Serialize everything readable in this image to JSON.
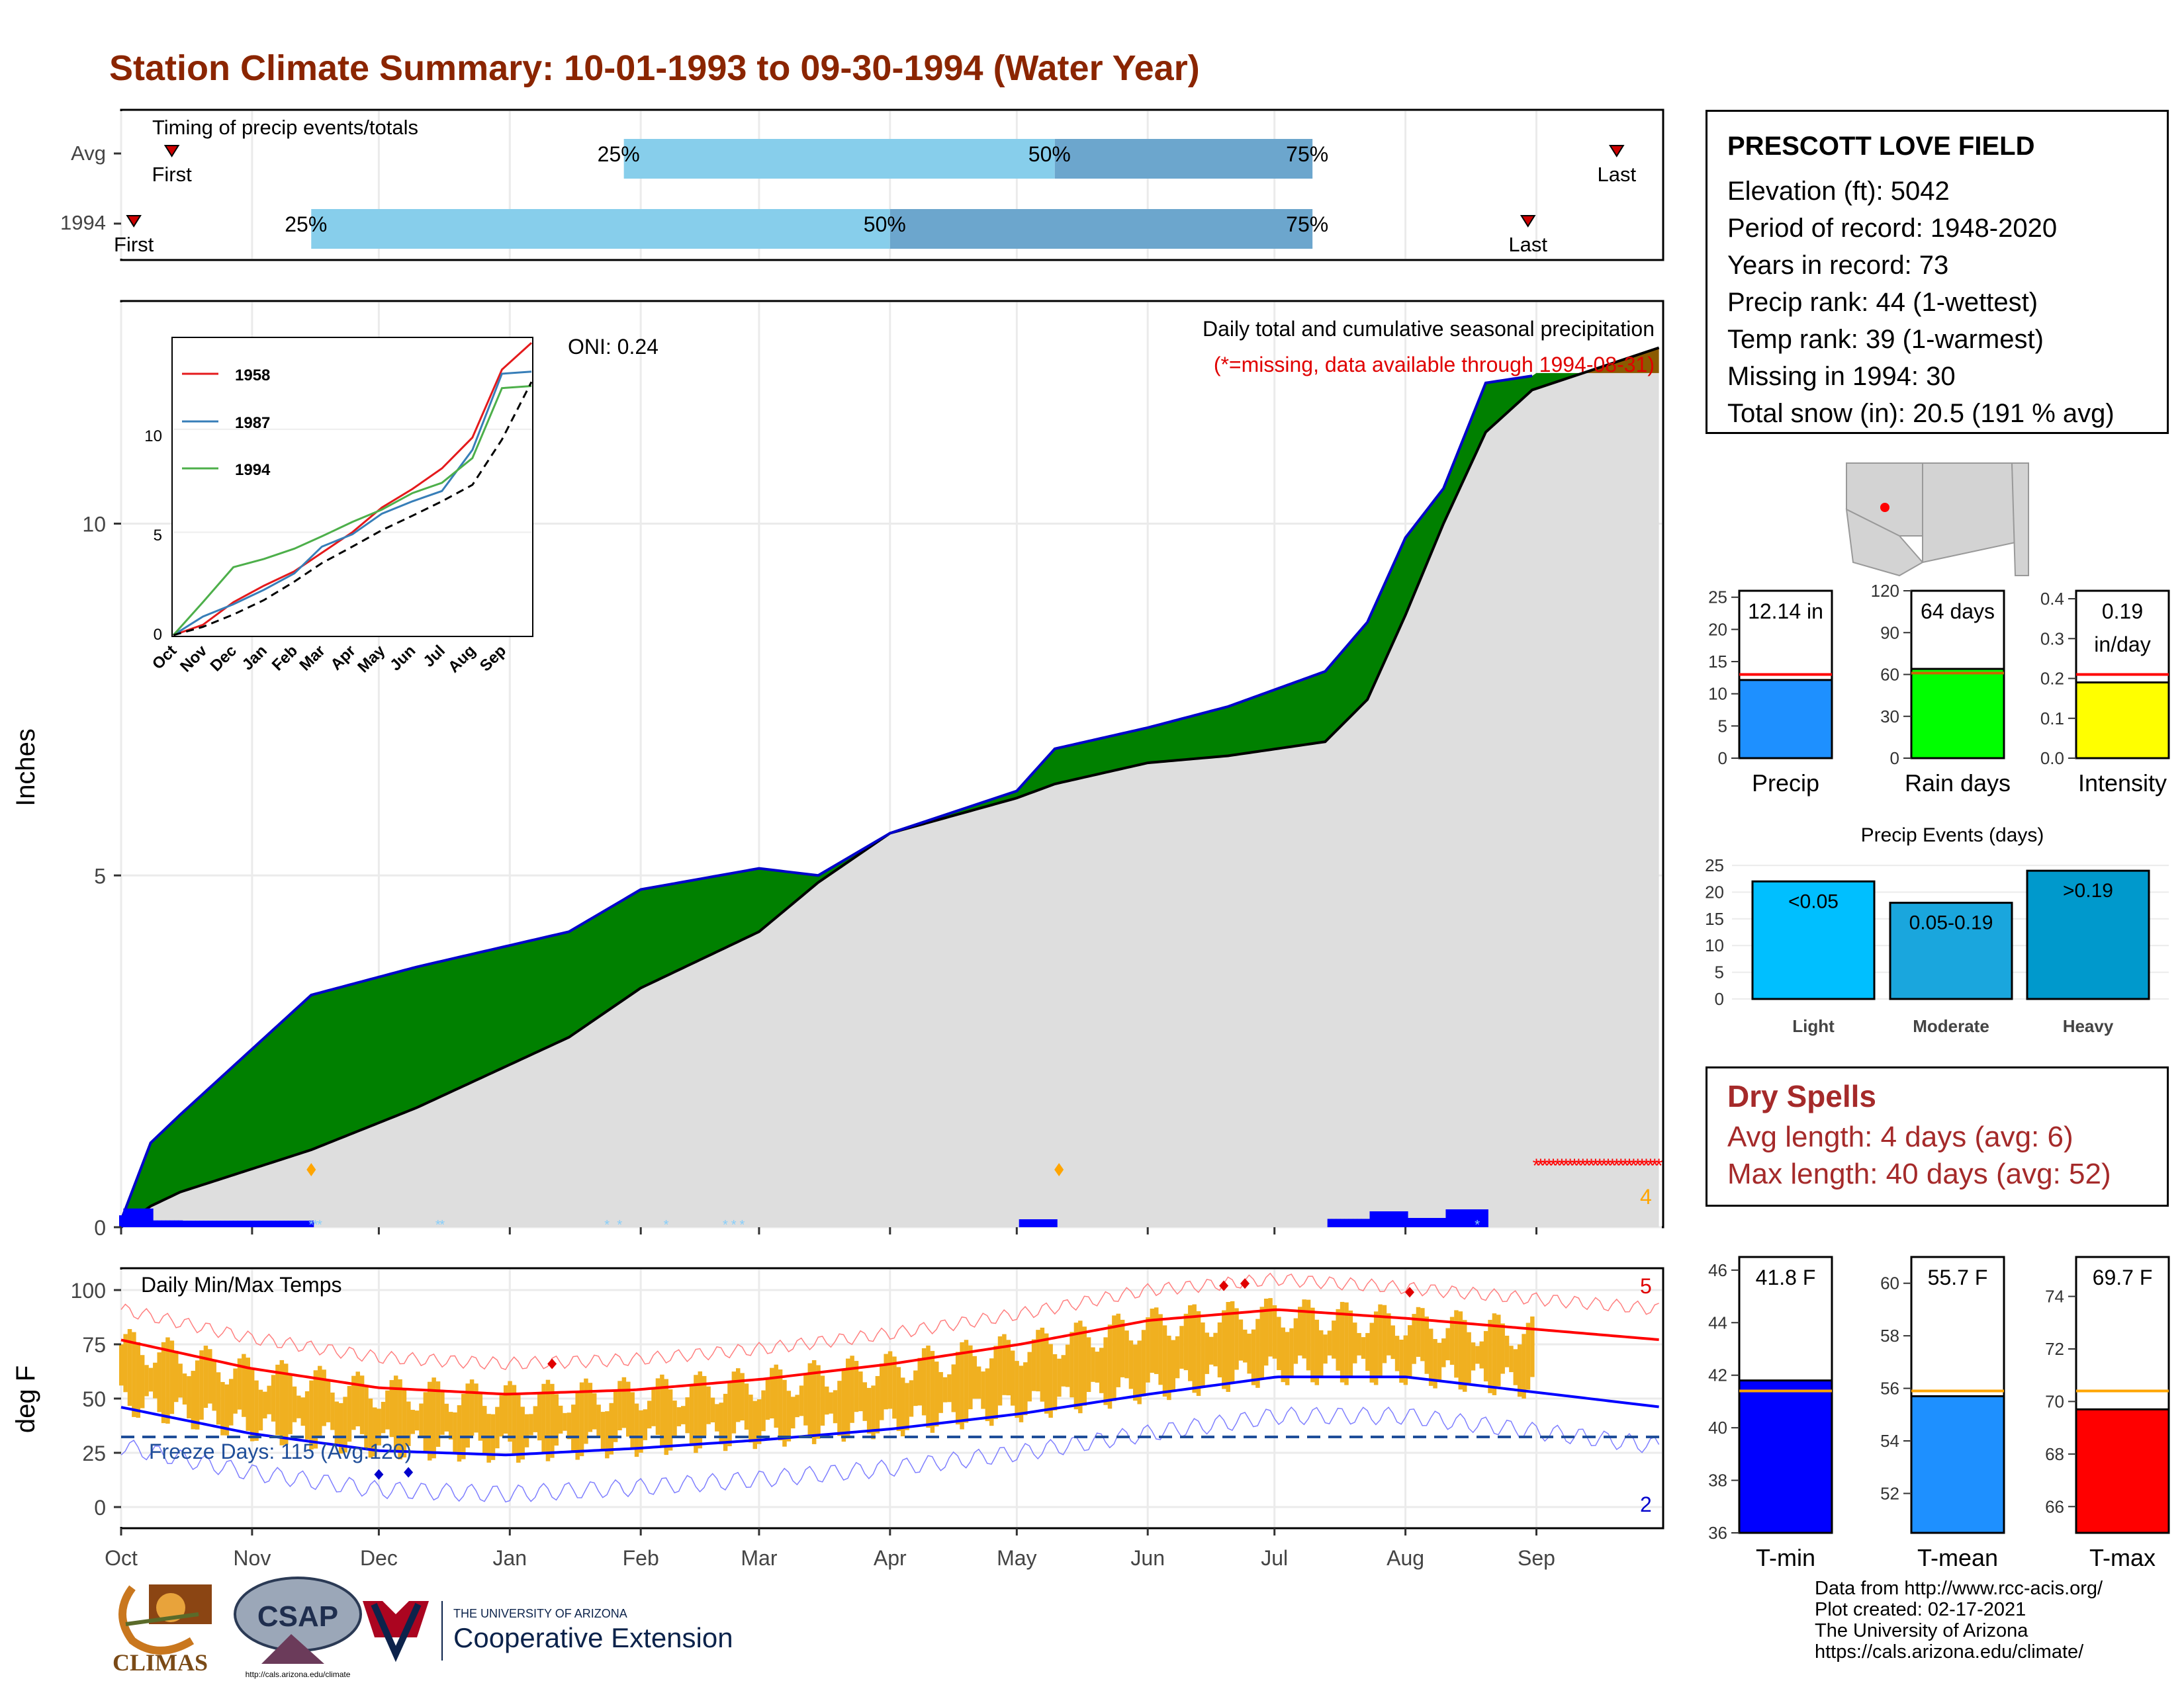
{
  "title": "Station Climate Summary: 10-01-1993 to 09-30-1994 (Water Year)",
  "station": {
    "name": "PRESCOTT LOVE FIELD",
    "lines": [
      "Elevation (ft): 5042",
      "Period of record: 1948-2020",
      "Years in record: 73",
      "Precip rank: 44 (1-wettest)",
      "Temp rank: 39 (1-warmest)",
      "Missing in 1994: 30",
      "Total snow (in): 20.5 (191 % avg)"
    ]
  },
  "timing": {
    "title": "Timing of precip events/totals",
    "rows": [
      {
        "label": "Avg",
        "first_day": 12,
        "p25_day": 119,
        "p50_day": 221,
        "p75_day": 282,
        "last_day": 354
      },
      {
        "label": "1994",
        "first_day": 3,
        "p25_day": 45,
        "p50_day": 182,
        "p75_day": 282,
        "last_day": 333
      }
    ],
    "first_label": "First",
    "last_label": "Last",
    "p25_label": "25%",
    "p50_label": "50%",
    "p75_label": "75%"
  },
  "main": {
    "ylabel": "Inches",
    "title_line1": "Daily total and cumulative seasonal precipitation",
    "title_line2": "(*=missing, data available through 1994-08-31)",
    "oni": "ONI: 0.24",
    "snow_count": "4",
    "yticks": [
      "0",
      "5",
      "10"
    ]
  },
  "months": [
    "Oct",
    "Nov",
    "Dec",
    "Jan",
    "Feb",
    "Mar",
    "Apr",
    "May",
    "Jun",
    "Jul",
    "Aug",
    "Sep"
  ],
  "inset": {
    "legend": [
      "1958",
      "1987",
      "1994"
    ],
    "colors": [
      "#E41A1C",
      "#377EB8",
      "#4DAF4A"
    ],
    "yticks": [
      "0",
      "5",
      "10"
    ]
  },
  "temps": {
    "title": "Daily Min/Max Temps",
    "ylabel": "deg F",
    "freeze_label": "Freeze Days: 115 (Avg:120)",
    "record_high_count": "5",
    "record_low_count": "2",
    "yticks": [
      "0",
      "25",
      "50",
      "75",
      "100"
    ]
  },
  "bars_precip": {
    "value_label": "12.14 in",
    "xlabel": "Precip",
    "yticks": [
      "0",
      "5",
      "10",
      "15",
      "20",
      "25"
    ],
    "color": "#1E90FF"
  },
  "bars_raindays": {
    "value_label": "64 days",
    "xlabel": "Rain days",
    "yticks": [
      "0",
      "30",
      "60",
      "90",
      "120"
    ],
    "color": "#00FF00"
  },
  "bars_intensity": {
    "value_label_1": "0.19",
    "value_label_2": "in/day",
    "xlabel": "Intensity",
    "yticks": [
      "0.0",
      "0.1",
      "0.2",
      "0.3",
      "0.4"
    ],
    "color": "#FFFF00"
  },
  "events": {
    "title": "Precip Events (days)",
    "categories": [
      "Light",
      "Moderate",
      "Heavy"
    ],
    "labels": [
      "<0.05",
      "0.05-0.19",
      ">0.19"
    ],
    "yticks": [
      "0",
      "5",
      "10",
      "15",
      "20",
      "25"
    ]
  },
  "dry": {
    "title": "Dry Spells",
    "avg": "Avg length: 4 days (avg: 6)",
    "max": "Max length: 40 days (avg: 52)"
  },
  "tbars": {
    "tmin": {
      "label": "41.8 F",
      "xlabel": "T-min",
      "yticks": [
        "36",
        "38",
        "40",
        "42",
        "44",
        "46"
      ],
      "color": "#0000FF"
    },
    "tmean": {
      "label": "55.7 F",
      "xlabel": "T-mean",
      "yticks": [
        "52",
        "54",
        "56",
        "58",
        "60"
      ],
      "color": "#1E90FF"
    },
    "tmax": {
      "label": "69.7 F",
      "xlabel": "T-max",
      "yticks": [
        "66",
        "68",
        "70",
        "72",
        "74"
      ],
      "color": "#FF0000"
    }
  },
  "credits": [
    "Data from http://www.rcc-acis.org/",
    "Plot created: 02-17-2021",
    "The University of Arizona",
    "https://cals.arizona.edu/climate/"
  ],
  "logos": {
    "climas": "CLIMAS",
    "csap": "CSAP",
    "csap_url": "http://cals.arizona.edu/climate",
    "ua_small": "THE UNIVERSITY OF ARIZONA",
    "ua_big": "Cooperative Extension"
  },
  "chart_data": [
    {
      "type": "area",
      "title": "Daily total and cumulative seasonal precipitation",
      "ylabel": "Inches",
      "ylim": [
        0,
        12.6
      ],
      "x": [
        "1993-10-01",
        "1993-10-08",
        "1993-10-15",
        "1993-11-15",
        "1993-12-10",
        "1994-01-15",
        "1994-02-01",
        "1994-03-01",
        "1994-03-15",
        "1994-04-01",
        "1994-05-01",
        "1994-05-10",
        "1994-06-01",
        "1994-06-20",
        "1994-07-13",
        "1994-07-23",
        "1994-08-01",
        "1994-08-10",
        "1994-08-20",
        "1994-08-31"
      ],
      "series": [
        {
          "name": "1994",
          "values": [
            0.1,
            1.2,
            1.6,
            3.3,
            3.7,
            4.2,
            4.8,
            5.1,
            5.0,
            5.6,
            6.2,
            6.8,
            7.1,
            7.4,
            7.9,
            8.6,
            9.8,
            10.5,
            12.0,
            12.1
          ]
        },
        {
          "name": "Avg",
          "values": [
            0.0,
            0.3,
            0.5,
            1.1,
            1.7,
            2.7,
            3.4,
            4.2,
            4.9,
            5.6,
            6.1,
            6.3,
            6.6,
            6.7,
            6.9,
            7.5,
            8.7,
            10.0,
            11.3,
            11.9
          ]
        }
      ]
    },
    {
      "type": "line",
      "title": "Daily Min/Max Temps",
      "ylabel": "deg F",
      "ylim": [
        -15,
        107
      ],
      "categories": [
        "Oct",
        "Nov",
        "Dec",
        "Jan",
        "Feb",
        "Mar",
        "Apr",
        "May",
        "Jun",
        "Jul",
        "Aug",
        "Sep"
      ],
      "series": [
        {
          "name": "Avg max",
          "values": [
            77,
            64,
            55,
            52,
            54,
            59,
            66,
            75,
            86,
            91,
            87,
            82
          ]
        },
        {
          "name": "Avg min",
          "values": [
            46,
            34,
            26,
            24,
            27,
            31,
            36,
            43,
            52,
            60,
            60,
            53
          ]
        }
      ]
    },
    {
      "type": "bar",
      "title": "Precip Events (days)",
      "categories": [
        "Light",
        "Moderate",
        "Heavy"
      ],
      "values": [
        22,
        18,
        24
      ],
      "ylim": [
        0,
        25
      ]
    },
    {
      "type": "bar",
      "categories": [
        "Precip",
        "Rain days",
        "Intensity",
        "T-min",
        "T-mean",
        "T-max"
      ],
      "values": [
        12.14,
        64,
        0.19,
        41.8,
        55.7,
        69.7
      ],
      "averages": [
        13.0,
        61,
        0.21,
        41.4,
        55.9,
        70.4
      ]
    }
  ]
}
